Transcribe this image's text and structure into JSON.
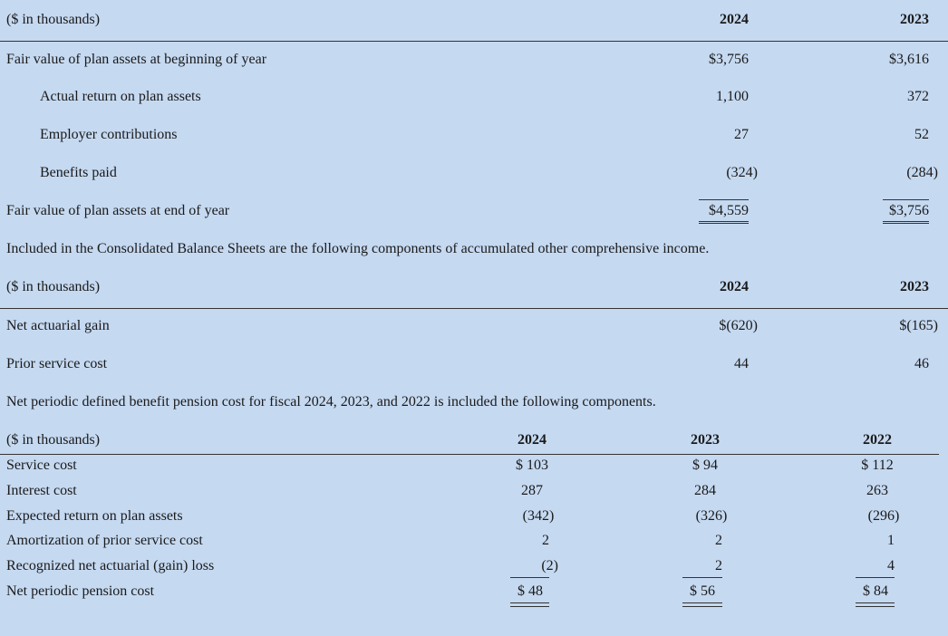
{
  "table1": {
    "header": {
      "label": "($ in thousands)",
      "col1": "2024",
      "col2": "2023"
    },
    "rows": [
      {
        "label": "Fair value of plan assets at beginning of year",
        "v1": "$3,756",
        "v2": "$3,616"
      },
      {
        "label": "Actual return on plan assets",
        "v1": "1,100",
        "v2": "372"
      },
      {
        "label": "Employer contributions",
        "v1": "27",
        "v2": "52"
      },
      {
        "label": "Benefits paid",
        "v1": "(324)",
        "v2": "(284)"
      },
      {
        "label": "Fair value of plan assets at end of year",
        "v1": "$4,559",
        "v2": "$3,756"
      }
    ]
  },
  "note1": "Included in the Consolidated Balance Sheets are the following components of accumulated other comprehensive income.",
  "table2": {
    "header": {
      "label": "($ in thousands)",
      "col1": "2024",
      "col2": "2023"
    },
    "rows": [
      {
        "label": "Net actuarial gain",
        "v1": "$(620)",
        "v2": "$(165)"
      },
      {
        "label": "Prior service cost",
        "v1": "44",
        "v2": "46"
      }
    ]
  },
  "note2": "Net periodic defined benefit pension cost for fiscal 2024, 2023, and 2022 is included the following components.",
  "table3": {
    "header": {
      "label": "($ in thousands)",
      "col1": "2024",
      "col2": "2023",
      "col3": "2022"
    },
    "rows": [
      {
        "label": "Service cost",
        "v1": "$ 103",
        "v2": "$ 94",
        "v3": "$ 112"
      },
      {
        "label": "Interest cost",
        "v1": "287",
        "v2": "284",
        "v3": "263"
      },
      {
        "label": "Expected return on plan assets",
        "v1": "(342)",
        "v2": "(326)",
        "v3": "(296)"
      },
      {
        "label": "Amortization of prior service cost",
        "v1": "2",
        "v2": "2",
        "v3": "1"
      },
      {
        "label": "Recognized net actuarial (gain) loss",
        "v1": "(2)",
        "v2": "2",
        "v3": "4"
      },
      {
        "label": "Net periodic pension cost",
        "v1": "$ 48",
        "v2": "$ 56",
        "v3": "$ 84"
      }
    ]
  }
}
